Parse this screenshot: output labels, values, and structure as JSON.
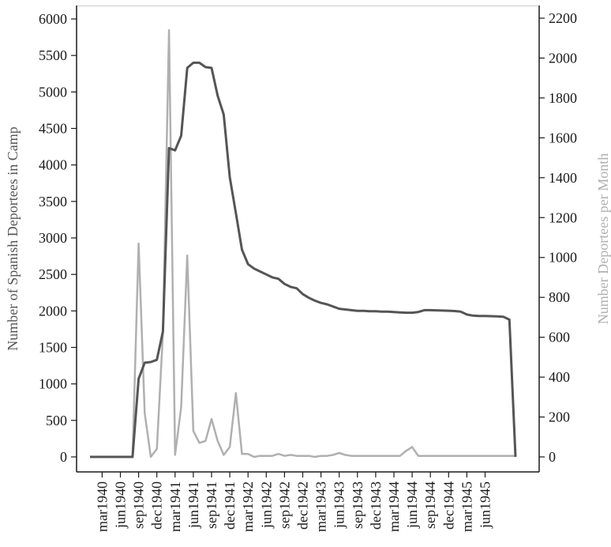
{
  "chart_data": {
    "type": "line",
    "x_tick_labels": [
      "mar1940",
      "jun1940",
      "sep1940",
      "dec1940",
      "mar1941",
      "jun1941",
      "sep1941",
      "dec1941",
      "mar1942",
      "jun1942",
      "sep1942",
      "dec1942",
      "mar1943",
      "jun1943",
      "sep1943",
      "dec1943",
      "mar1944",
      "jun1944",
      "sep1944",
      "dec1944",
      "mar1945",
      "jun1945"
    ],
    "x_label": "",
    "y_left": {
      "label": "Number of Spanish Deportees in Camp",
      "ticks": [
        "0",
        "500",
        "1000",
        "1500",
        "2000",
        "2500",
        "3000",
        "3500",
        "4000",
        "4500",
        "5000",
        "5500",
        "6000"
      ],
      "range": [
        0,
        6000
      ],
      "color": "#555555"
    },
    "y_right": {
      "label": "Number Deportees per Month",
      "ticks": [
        "0",
        "200",
        "400",
        "600",
        "800",
        "1000",
        "1200",
        "1400",
        "1600",
        "1800",
        "2000",
        "2200"
      ],
      "range": [
        0,
        2200
      ],
      "color": "#bbbbbb"
    },
    "x_start": "jan1940",
    "series": [
      {
        "axis": "left",
        "color": "#555555",
        "values": [
          0,
          0,
          0,
          0,
          0,
          0,
          0,
          0,
          1070,
          1290,
          1300,
          1330,
          1720,
          4230,
          4200,
          4400,
          5330,
          5400,
          5400,
          5340,
          5330,
          4950,
          4690,
          3830,
          3340,
          2840,
          2640,
          2580,
          2540,
          2500,
          2460,
          2440,
          2370,
          2330,
          2310,
          2230,
          2180,
          2140,
          2110,
          2090,
          2060,
          2030,
          2020,
          2010,
          2000,
          2000,
          1995,
          1995,
          1990,
          1990,
          1985,
          1980,
          1975,
          1975,
          1985,
          2010,
          2010,
          2008,
          2005,
          2003,
          1998,
          1990,
          1950,
          1935,
          1930,
          1930,
          1928,
          1925,
          1920,
          1880,
          0
        ]
      },
      {
        "axis": "right",
        "color": "#b0b0b0",
        "values": [
          0,
          0,
          0,
          0,
          0,
          0,
          0,
          0,
          1070,
          220,
          0,
          40,
          620,
          2140,
          10,
          250,
          1010,
          130,
          70,
          80,
          190,
          80,
          10,
          50,
          320,
          15,
          15,
          0,
          5,
          5,
          5,
          15,
          5,
          10,
          5,
          5,
          5,
          0,
          5,
          5,
          10,
          20,
          10,
          5,
          5,
          5,
          5,
          5,
          5,
          5,
          5,
          5,
          30,
          50,
          5,
          5,
          5,
          5,
          5,
          5,
          5,
          5,
          5,
          5,
          5,
          5,
          5,
          5,
          5,
          5,
          5
        ]
      }
    ]
  }
}
